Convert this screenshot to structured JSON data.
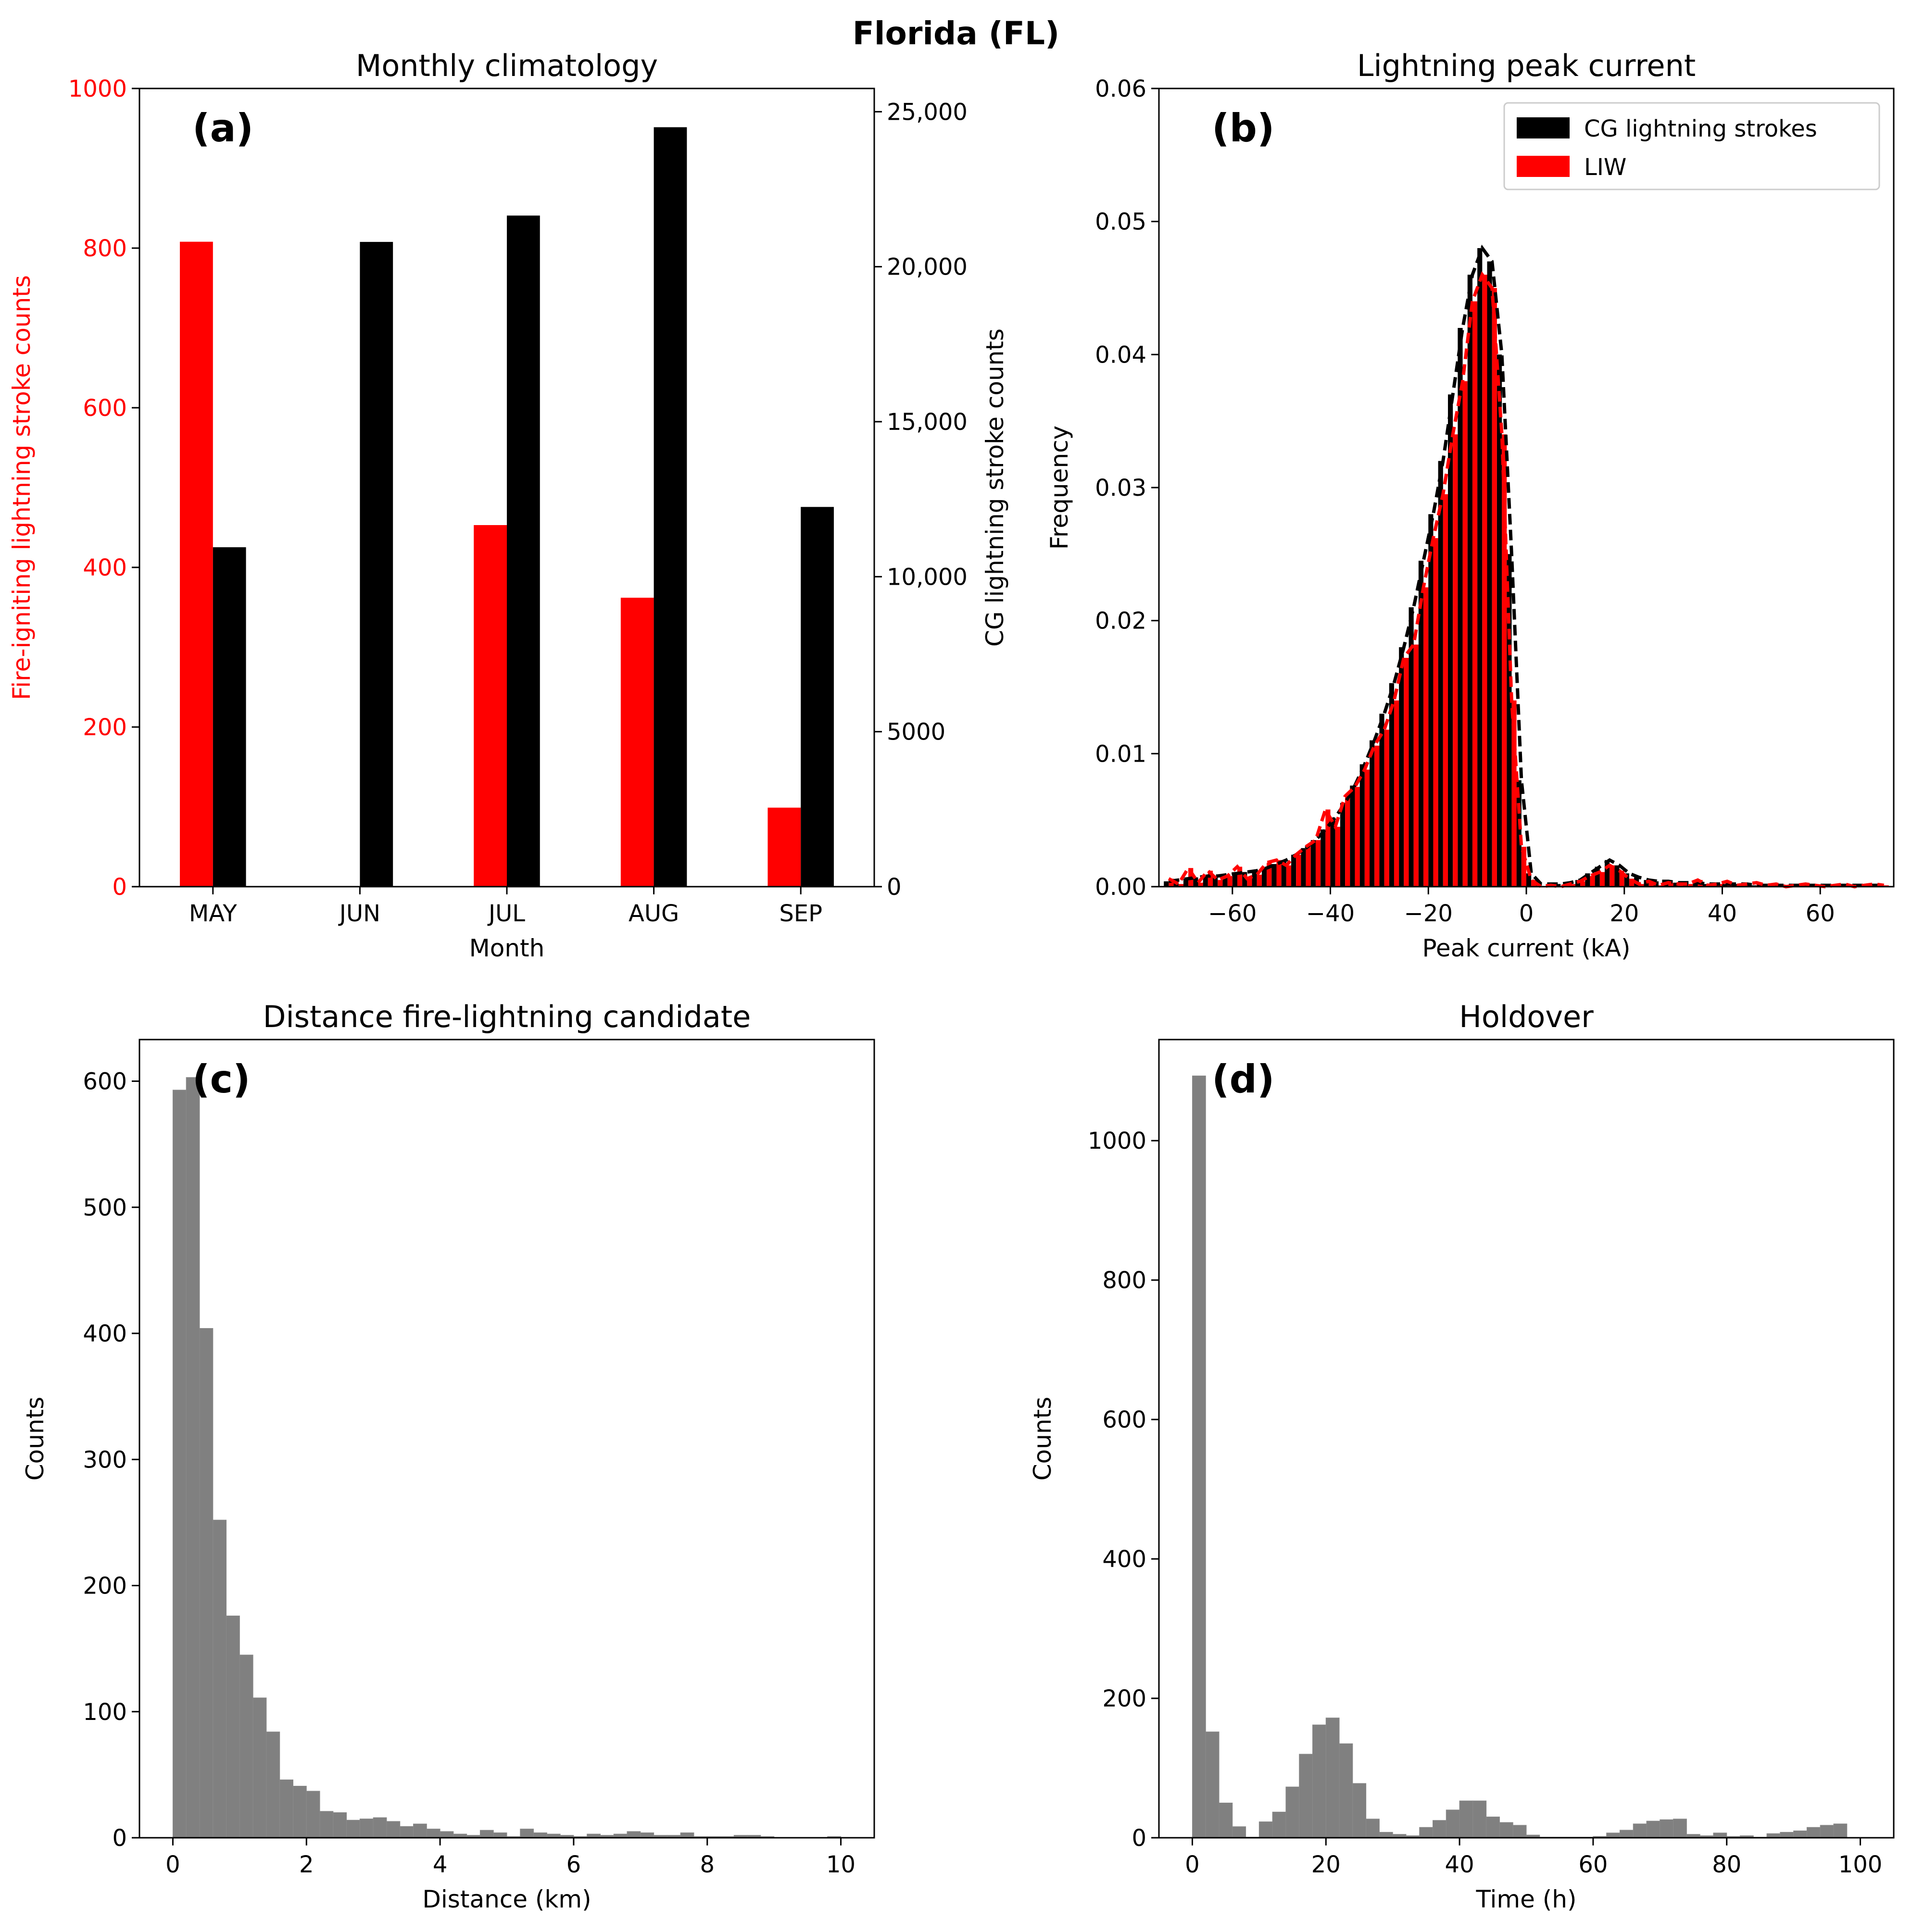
{
  "figure": {
    "title": "Florida (FL)"
  },
  "colors": {
    "fire": "#ff0000",
    "cg": "#000000",
    "hist": "#808080"
  },
  "chart_data": [
    {
      "id": "a",
      "type": "bar",
      "panel_letter": "(a)",
      "title": "Monthly climatology",
      "xlabel": "Month",
      "categories": [
        "MAY",
        "JUN",
        "JUL",
        "AUG",
        "SEP"
      ],
      "ylabel": "Fire-igniting lightning stroke counts",
      "ylim": [
        0,
        1000
      ],
      "yticks": [
        0,
        200,
        400,
        600,
        800,
        1000
      ],
      "ytick_labels": [
        "0",
        "200",
        "400",
        "600",
        "800",
        "1000"
      ],
      "y2label": "CG lightning stroke counts",
      "y2lim": [
        0,
        25750
      ],
      "y2ticks": [
        0,
        5000,
        10000,
        15000,
        20000,
        25000
      ],
      "y2tick_labels": [
        "0",
        "5000",
        "10,000",
        "15,000",
        "20,000",
        "25,000"
      ],
      "series": [
        {
          "name": "Fire-igniting lightning strokes",
          "axis": "left",
          "color": "#ff0000",
          "values": [
            808,
            0,
            453,
            362,
            99
          ]
        },
        {
          "name": "CG lightning strokes",
          "axis": "right",
          "color": "#000000",
          "values": [
            10950,
            20800,
            21650,
            24500,
            12250
          ]
        }
      ]
    },
    {
      "id": "b",
      "type": "bar",
      "panel_letter": "(b)",
      "title": "Lightning peak current",
      "xlabel": "Peak current (kA)",
      "ylabel": "Frequency",
      "xlim": [
        -75,
        75
      ],
      "ylim": [
        0,
        0.06
      ],
      "xticks": [
        -60,
        -40,
        -20,
        0,
        20,
        40,
        60
      ],
      "xtick_labels": [
        "−60",
        "−40",
        "−20",
        "0",
        "20",
        "40",
        "60"
      ],
      "yticks": [
        0,
        0.01,
        0.02,
        0.03,
        0.04,
        0.05,
        0.06
      ],
      "ytick_labels": [
        "0.00",
        "0.01",
        "0.02",
        "0.03",
        "0.04",
        "0.05",
        "0.06"
      ],
      "legend": [
        "CG lightning strokes",
        "LIW"
      ],
      "bins": [
        -74,
        -72,
        -70,
        -68,
        -66,
        -64,
        -62,
        -60,
        -58,
        -56,
        -54,
        -52,
        -50,
        -48,
        -46,
        -44,
        -42,
        -40,
        -38,
        -36,
        -34,
        -32,
        -30,
        -28,
        -26,
        -24,
        -22,
        -20,
        -18,
        -16,
        -14,
        -12,
        -10,
        -8,
        -6,
        -4,
        -2,
        0,
        2,
        4,
        6,
        8,
        10,
        12,
        14,
        16,
        18,
        20,
        22,
        24,
        26,
        28,
        30,
        32,
        34,
        36,
        38,
        40,
        42,
        44,
        46,
        48,
        50,
        52,
        54,
        56,
        58,
        60,
        62,
        64,
        66,
        68,
        70,
        72
      ],
      "series": [
        {
          "name": "CG lightning strokes",
          "color": "#000000",
          "values": [
            0.0004,
            0.0005,
            0.0006,
            0.0007,
            0.0008,
            0.0008,
            0.0009,
            0.001,
            0.0011,
            0.0012,
            0.0014,
            0.0017,
            0.002,
            0.0024,
            0.0029,
            0.0035,
            0.0043,
            0.0052,
            0.0063,
            0.0076,
            0.0092,
            0.011,
            0.013,
            0.0153,
            0.018,
            0.021,
            0.0245,
            0.028,
            0.032,
            0.037,
            0.042,
            0.046,
            0.048,
            0.047,
            0.04,
            0.025,
            0.008,
            0.001,
            0.0002,
            0.0002,
            0.0002,
            0.0003,
            0.0005,
            0.001,
            0.0015,
            0.002,
            0.0016,
            0.001,
            0.0007,
            0.0005,
            0.0004,
            0.0004,
            0.0003,
            0.0003,
            0.0003,
            0.0002,
            0.0002,
            0.0002,
            0.0002,
            0.0002,
            0.0001,
            0.0001,
            0.0001,
            0.0001,
            0.0001,
            0.0001,
            0.0001,
            0.0001,
            0.0001,
            0.0001,
            0.0001,
            0.0001,
            0.0001,
            0.0001
          ]
        },
        {
          "name": "LIW",
          "color": "#ff0000",
          "values": [
            0.0006,
            0.0002,
            0.0014,
            0.0003,
            0.0012,
            0.0005,
            0.0008,
            0.0015,
            0.0006,
            0.0009,
            0.0018,
            0.002,
            0.0016,
            0.0024,
            0.003,
            0.0035,
            0.0058,
            0.0045,
            0.0068,
            0.0075,
            0.0088,
            0.0106,
            0.0118,
            0.014,
            0.0172,
            0.0182,
            0.0225,
            0.0262,
            0.0295,
            0.034,
            0.038,
            0.044,
            0.046,
            0.045,
            0.034,
            0.014,
            0.003,
            0.0005,
            0,
            0.0001,
            0,
            0.0002,
            0.0004,
            0.0008,
            0.0011,
            0.0016,
            0.0012,
            0.0006,
            0.0002,
            0.0004,
            0.0001,
            0.0003,
            0.0002,
            0.0002,
            0.0005,
            0.0001,
            0.0002,
            0.0004,
            0.0001,
            0.0002,
            0.0003,
            0.0001,
            0.0002,
            0,
            0.0001,
            0.0002,
            0.0001,
            0,
            0.0001,
            0.0002,
            0,
            0.0001,
            0.0002,
            0.0001
          ]
        }
      ]
    },
    {
      "id": "c",
      "type": "bar",
      "panel_letter": "(c)",
      "title": "Distance fire-lightning candidate",
      "xlabel": "Distance (km)",
      "ylabel": "Counts",
      "xlim": [
        -0.5,
        10.5
      ],
      "ylim": [
        0,
        633
      ],
      "xticks": [
        0,
        2,
        4,
        6,
        8,
        10
      ],
      "xtick_labels": [
        "0",
        "2",
        "4",
        "6",
        "8",
        "10"
      ],
      "yticks": [
        0,
        100,
        200,
        300,
        400,
        500,
        600
      ],
      "ytick_labels": [
        "0",
        "100",
        "200",
        "300",
        "400",
        "500",
        "600"
      ],
      "bin_width": 0.2,
      "bins": [
        0,
        0.2,
        0.4,
        0.6,
        0.8,
        1.0,
        1.2,
        1.4,
        1.6,
        1.8,
        2.0,
        2.2,
        2.4,
        2.6,
        2.8,
        3.0,
        3.2,
        3.4,
        3.6,
        3.8,
        4.0,
        4.2,
        4.4,
        4.6,
        4.8,
        5.0,
        5.2,
        5.4,
        5.6,
        5.8,
        6.0,
        6.2,
        6.4,
        6.6,
        6.8,
        7.0,
        7.2,
        7.4,
        7.6,
        7.8,
        8.0,
        8.2,
        8.4,
        8.6,
        8.8,
        9.0,
        9.2,
        9.4,
        9.6,
        9.8
      ],
      "values": [
        593,
        603,
        404,
        252,
        176,
        145,
        111,
        84,
        46,
        41,
        37,
        21,
        20,
        14,
        15,
        16,
        13,
        9,
        11,
        7,
        5,
        3,
        2,
        6,
        4,
        1,
        7,
        4,
        3,
        2,
        1,
        3,
        2,
        3,
        5,
        4,
        2,
        2,
        4,
        1,
        1,
        1,
        2,
        2,
        1,
        0,
        0,
        0,
        0,
        1
      ]
    },
    {
      "id": "d",
      "type": "bar",
      "panel_letter": "(d)",
      "title": "Holdover",
      "xlabel": "Time (h)",
      "ylabel": "Counts",
      "xlim": [
        -5,
        105
      ],
      "ylim": [
        0,
        1145
      ],
      "xticks": [
        0,
        20,
        40,
        60,
        80,
        100
      ],
      "xtick_labels": [
        "0",
        "20",
        "40",
        "60",
        "80",
        "100"
      ],
      "yticks": [
        0,
        200,
        400,
        600,
        800,
        1000
      ],
      "ytick_labels": [
        "0",
        "200",
        "400",
        "600",
        "800",
        "1000"
      ],
      "bin_width": 2,
      "bins": [
        0,
        2,
        4,
        6,
        8,
        10,
        12,
        14,
        16,
        18,
        20,
        22,
        24,
        26,
        28,
        30,
        32,
        34,
        36,
        38,
        40,
        42,
        44,
        46,
        48,
        50,
        52,
        54,
        56,
        58,
        60,
        62,
        64,
        66,
        68,
        70,
        72,
        74,
        76,
        78,
        80,
        82,
        84,
        86,
        88,
        90,
        92,
        94,
        96
      ],
      "values": [
        1093,
        152,
        50,
        16,
        1,
        23,
        37,
        73,
        120,
        162,
        172,
        135,
        78,
        27,
        8,
        5,
        3,
        15,
        25,
        40,
        53,
        53,
        30,
        22,
        18,
        4,
        1,
        1,
        1,
        1,
        2,
        7,
        11,
        20,
        24,
        26,
        27,
        5,
        3,
        7,
        2,
        3,
        1,
        6,
        8,
        10,
        15,
        18,
        20
      ]
    }
  ]
}
